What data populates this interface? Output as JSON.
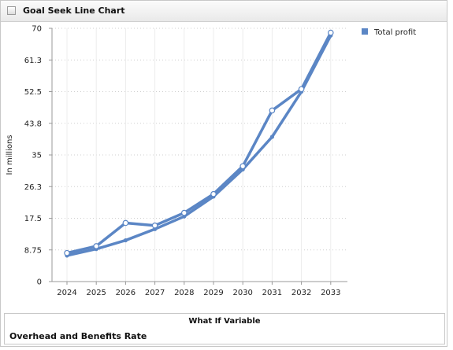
{
  "window": {
    "title": "Goal Seek Line Chart"
  },
  "legend": {
    "label": "Total profit"
  },
  "footer": {
    "whatif_title": "What If Variable",
    "variable_name": "Overhead and Benefits Rate"
  },
  "colors": {
    "series": "#5b86c5",
    "grid": "#cfcfcf",
    "axis": "#999999"
  },
  "chart_data": {
    "type": "line",
    "title": "Goal Seek Line Chart",
    "ylabel": "In millions",
    "xlabel": "",
    "categories": [
      "2024",
      "2025",
      "2026",
      "2027",
      "2028",
      "2029",
      "2030",
      "2031",
      "2032",
      "2033"
    ],
    "yticks": [
      "0",
      "8.75",
      "17.5",
      "26.3",
      "35",
      "43.8",
      "52.5",
      "61.3",
      "70"
    ],
    "ylim": [
      0,
      70
    ],
    "grid": true,
    "legend_position": "top-right",
    "series": [
      {
        "name": "Total profit",
        "markers": "filled",
        "values": [
          7.2,
          9.0,
          11.4,
          14.5,
          18.0,
          23.5,
          31.0,
          40.0,
          52.5,
          68.0
        ]
      },
      {
        "name": "Total profit",
        "markers": "hollow",
        "values": [
          7.9,
          9.8,
          16.2,
          15.5,
          19.0,
          24.2,
          31.9,
          47.3,
          53.2,
          68.8
        ]
      }
    ]
  }
}
